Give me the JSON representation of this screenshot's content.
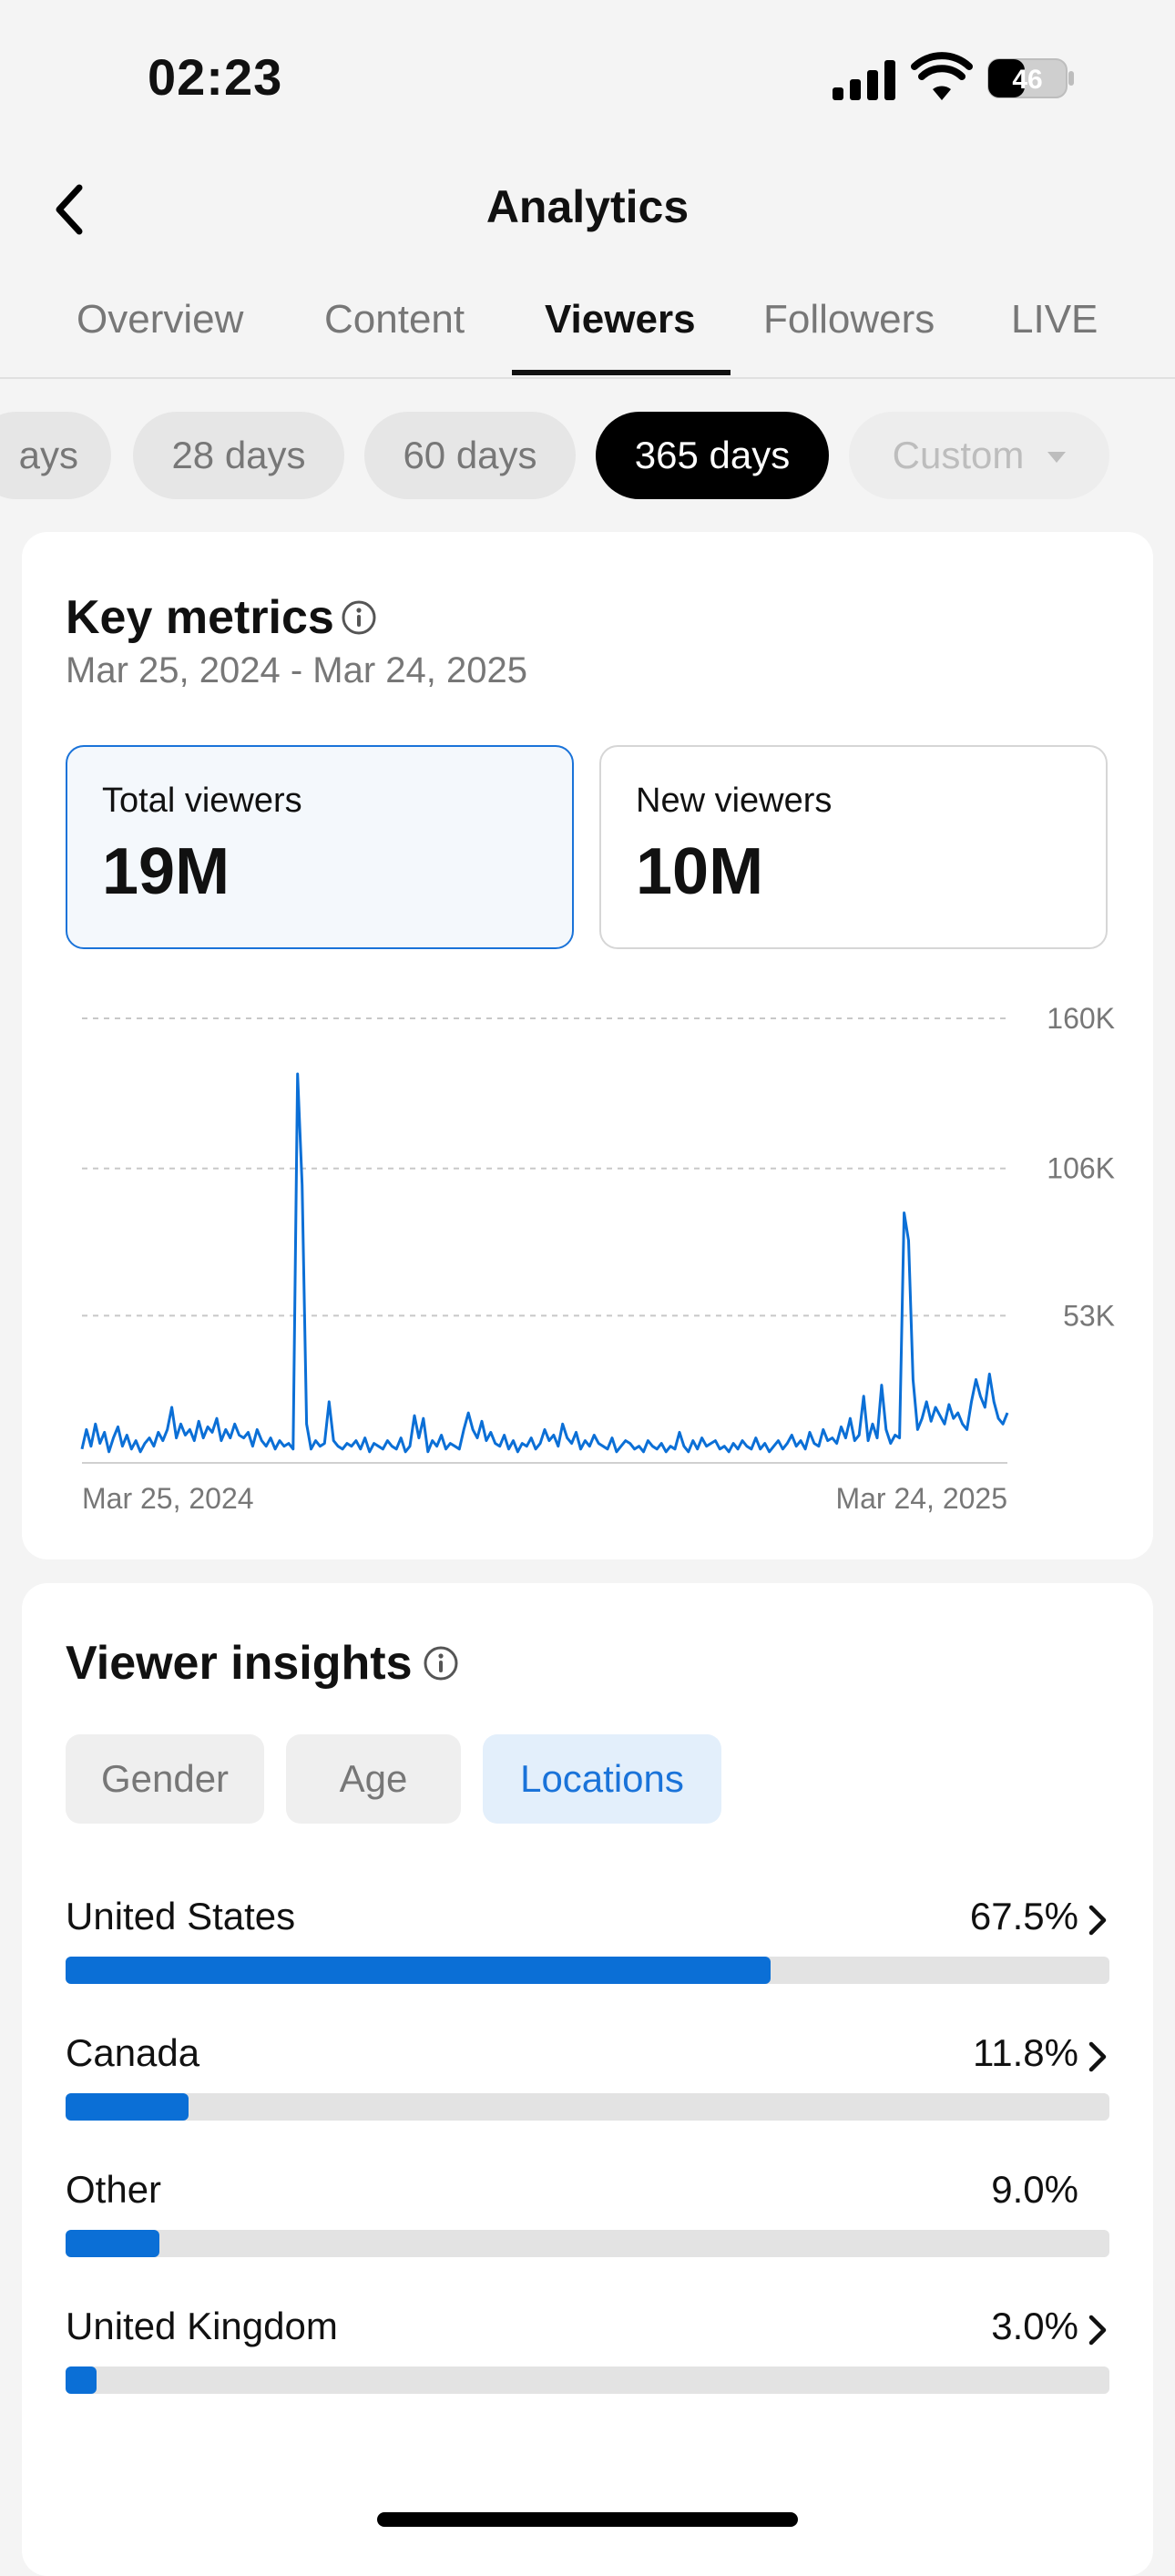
{
  "status_bar": {
    "time": "02:23",
    "battery": "46"
  },
  "header": {
    "title": "Analytics"
  },
  "tabs": [
    {
      "label": "Overview",
      "active": false
    },
    {
      "label": "Content",
      "active": false
    },
    {
      "label": "Viewers",
      "active": true
    },
    {
      "label": "Followers",
      "active": false
    },
    {
      "label": "LIVE",
      "active": false
    }
  ],
  "ranges": [
    {
      "label": "ays",
      "active": false
    },
    {
      "label": "28 days",
      "active": false
    },
    {
      "label": "60 days",
      "active": false
    },
    {
      "label": "365 days",
      "active": true
    },
    {
      "label": "Custom",
      "active": false,
      "disabled": true
    }
  ],
  "key_metrics": {
    "title": "Key metrics",
    "date_range": "Mar 25, 2024 - Mar 24, 2025",
    "metrics": [
      {
        "label": "Total viewers",
        "value": "19M",
        "selected": true
      },
      {
        "label": "New viewers",
        "value": "10M",
        "selected": false
      }
    ]
  },
  "chart_data": {
    "type": "line",
    "title": "",
    "xlabel": "",
    "ylabel": "",
    "x_start_label": "Mar 25, 2024",
    "x_end_label": "Mar 24, 2025",
    "y_ticks": [
      "160K",
      "106K",
      "53K"
    ],
    "ylim": [
      0,
      160000
    ],
    "grid": true,
    "series": [
      {
        "color": "#0b6fd6",
        "values": [
          5000,
          12000,
          6000,
          14000,
          7000,
          11000,
          4000,
          9000,
          13000,
          6000,
          10000,
          5000,
          8000,
          4000,
          7000,
          9000,
          6000,
          11000,
          8000,
          12000,
          20000,
          9000,
          14000,
          10000,
          12000,
          8000,
          15000,
          9000,
          13000,
          11000,
          16000,
          8000,
          12000,
          9000,
          14000,
          10000,
          9000,
          11000,
          6000,
          12000,
          8000,
          6000,
          9000,
          5000,
          8000,
          6000,
          7000,
          5000,
          140000,
          100000,
          14000,
          5000,
          8000,
          6000,
          7000,
          22000,
          8000,
          6000,
          5000,
          7000,
          6000,
          8000,
          5000,
          9000,
          4000,
          7000,
          6000,
          5000,
          8000,
          6000,
          5000,
          9000,
          4000,
          6000,
          17000,
          9000,
          16000,
          4000,
          8000,
          6000,
          10000,
          5000,
          7000,
          6000,
          5000,
          12000,
          18000,
          12000,
          9000,
          15000,
          8000,
          11000,
          7000,
          6000,
          10000,
          5000,
          8000,
          4000,
          7000,
          6000,
          9000,
          5000,
          7000,
          12000,
          8000,
          10000,
          6000,
          14000,
          9000,
          7000,
          11000,
          5000,
          8000,
          6000,
          10000,
          7000,
          6000,
          5000,
          9000,
          4000,
          6000,
          8000,
          7000,
          5000,
          6000,
          4000,
          8000,
          6000,
          5000,
          7000,
          4000,
          6000,
          5000,
          11000,
          6000,
          4000,
          8000,
          5000,
          9000,
          6000,
          7000,
          8000,
          5000,
          6000,
          4000,
          7000,
          5000,
          8000,
          6000,
          5000,
          9000,
          5000,
          7000,
          4000,
          6000,
          8000,
          5000,
          7000,
          10000,
          6000,
          8000,
          5000,
          11000,
          7000,
          6000,
          12000,
          8000,
          9000,
          7000,
          13000,
          9000,
          16000,
          8000,
          10000,
          24000,
          8000,
          14000,
          9000,
          28000,
          12000,
          7000,
          10000,
          9000,
          90000,
          80000,
          30000,
          12000,
          16000,
          22000,
          15000,
          20000,
          17000,
          14000,
          21000,
          16000,
          18000,
          14000,
          12000,
          22000,
          30000,
          24000,
          20000,
          32000,
          22000,
          16000,
          14000,
          18000
        ]
      }
    ]
  },
  "viewer_insights": {
    "title": "Viewer insights",
    "tabs": [
      {
        "label": "Gender",
        "active": false
      },
      {
        "label": "Age",
        "active": false
      },
      {
        "label": "Locations",
        "active": true
      }
    ],
    "locations": [
      {
        "name": "United States",
        "percent_label": "67.5%",
        "percent": 67.5,
        "has_details": true
      },
      {
        "name": "Canada",
        "percent_label": "11.8%",
        "percent": 11.8,
        "has_details": true
      },
      {
        "name": "Other",
        "percent_label": "9.0%",
        "percent": 9.0,
        "has_details": false
      },
      {
        "name": "United Kingdom",
        "percent_label": "3.0%",
        "percent": 3.0,
        "has_details": true
      }
    ]
  }
}
